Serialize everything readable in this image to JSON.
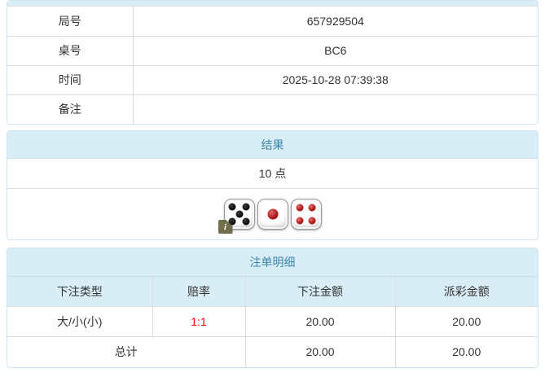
{
  "info_table": {
    "rows": [
      {
        "label": "局号",
        "value": "657929504"
      },
      {
        "label": "桌号",
        "value": "BC6"
      },
      {
        "label": "时间",
        "value": "2025-10-28 07:39:38"
      },
      {
        "label": "备注",
        "value": ""
      }
    ]
  },
  "result_panel": {
    "title": "结果",
    "points": "10 点",
    "dice": [
      {
        "name": "die-five",
        "value": 5,
        "pip_color_dark": "#3a3a3a",
        "pip_color": "#0a0a0a"
      },
      {
        "name": "die-one",
        "value": 1,
        "pip_color_dark": "#e06a6a",
        "pip_color": "#a50b0b"
      },
      {
        "name": "die-four",
        "value": 4,
        "pip_color_dark": "#e06a6a",
        "pip_color": "#a50b0b"
      }
    ],
    "info_icon_glyph": "i"
  },
  "bets_panel": {
    "title": "注单明细",
    "columns": [
      "下注类型",
      "赔率",
      "下注金额",
      "派彩金额"
    ],
    "rows": [
      {
        "bet_type": "大/小(小)",
        "odds": "1:1",
        "bet_amount": "20.00",
        "payout_amount": "20.00"
      }
    ],
    "total": {
      "label": "总计",
      "bet_amount": "20.00",
      "payout_amount": "20.00"
    }
  },
  "colors": {
    "header_bg": "#d9edf7",
    "header_text": "#3a87ad",
    "border_light": "#ddd",
    "panel_border": "#cfe5ef",
    "odds_red": "#ff0000",
    "text": "#333333"
  }
}
